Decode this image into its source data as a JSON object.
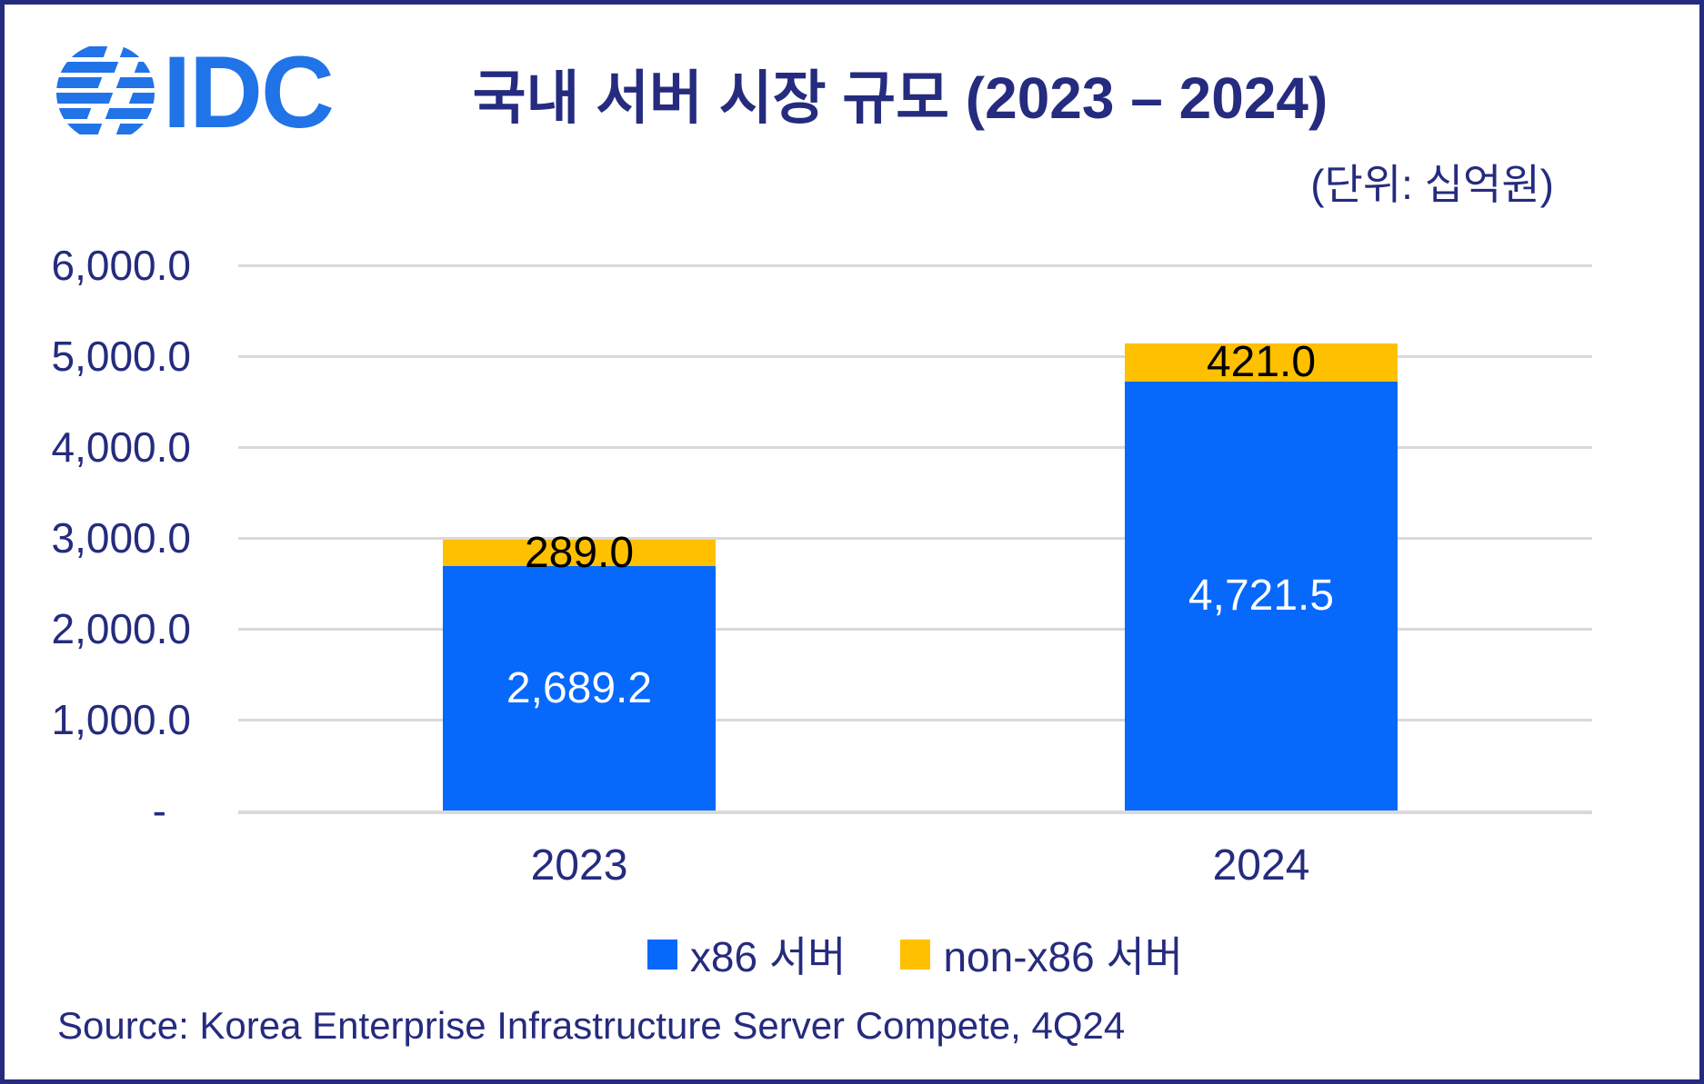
{
  "header": {
    "logo": {
      "brand": "IDC",
      "globe_icon": "striped-globe"
    },
    "title": "국내 서버 시장 규모 (2023 – 2024)",
    "unit_label": "(단위: 십억원)"
  },
  "chart_data": {
    "type": "bar",
    "stacked": true,
    "title": "국내 서버 시장 규모 (2023 – 2024)",
    "unit": "십억원",
    "categories": [
      "2023",
      "2024"
    ],
    "series": [
      {
        "name": "x86 서버",
        "color": "#0768fc",
        "label_color": "#ffffff",
        "values": [
          2689.2,
          4721.5
        ],
        "labels": [
          "2,689.2",
          "4,721.5"
        ]
      },
      {
        "name": "non-x86 서버",
        "color": "#ffc000",
        "label_color": "#000000",
        "values": [
          289.0,
          421.0
        ],
        "labels": [
          "289.0",
          "421.0"
        ]
      }
    ],
    "ylim": [
      0,
      6000
    ],
    "ytick_step": 1000,
    "yticks": [
      {
        "value": 6000,
        "label": "6,000.0"
      },
      {
        "value": 5000,
        "label": "5,000.0"
      },
      {
        "value": 4000,
        "label": "4,000.0"
      },
      {
        "value": 3000,
        "label": "3,000.0"
      },
      {
        "value": 2000,
        "label": "2,000.0"
      },
      {
        "value": 1000,
        "label": "1,000.0"
      },
      {
        "value": 0,
        "label": "-"
      }
    ],
    "grid": "horizontal",
    "legend_position": "bottom"
  },
  "footer": {
    "source": "Source: Korea Enterprise Infrastructure Server Compete, 4Q24"
  },
  "colors": {
    "navy_text": "#252b7e",
    "logo_blue": "#2173e8",
    "x86_blue": "#0768fc",
    "nonx86_yellow": "#ffc000",
    "gridline": "#d9d9d9",
    "border": "#252b7e"
  }
}
